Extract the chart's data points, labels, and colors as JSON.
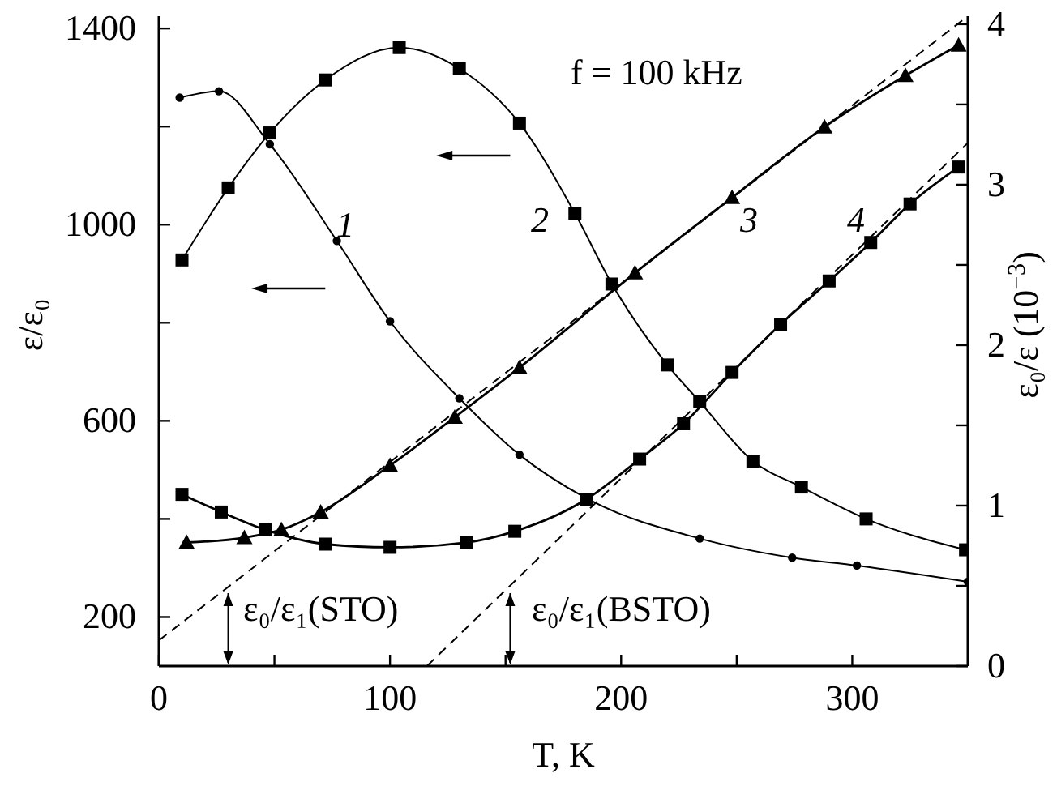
{
  "chart_data": {
    "type": "line",
    "xlabel": "T, K",
    "ylabel": "ε/ε₀",
    "y2label": "ε₀/ε (10$^{−3}$)",
    "xlim": [
      0,
      350
    ],
    "xticks": [
      0,
      {
        "value": 50,
        "label": null
      },
      100,
      {
        "value": 150,
        "label": null
      },
      200,
      {
        "value": 250,
        "label": null
      },
      300
    ],
    "ylim": [
      100,
      1425
    ],
    "yticks": [
      200,
      {
        "value": 400,
        "label": null
      },
      600,
      {
        "value": 800,
        "label": null
      },
      1000,
      {
        "value": 1200,
        "label": null
      },
      1400
    ],
    "y2lim": [
      0,
      4.05
    ],
    "y2ticks": [
      0,
      {
        "value": 0.5,
        "label": null
      },
      1,
      {
        "value": 1.5,
        "label": null
      },
      2,
      {
        "value": 2.5,
        "label": null
      },
      3,
      {
        "value": 3.5,
        "label": null
      },
      4
    ],
    "grid": false,
    "line_style": "solid",
    "series": [
      {
        "color": "#000000",
        "marker": "circle",
        "x": [
          9,
          26,
          48,
          77,
          100,
          130,
          156,
          185,
          234,
          274,
          302,
          350
        ],
        "values": [
          1259,
          1272,
          1164,
          967,
          803,
          646,
          531,
          442,
          360,
          321,
          305,
          272
        ]
      },
      {
        "color": "#000000",
        "marker": "square",
        "x": [
          10,
          30,
          48,
          72,
          104,
          130,
          156,
          180,
          196,
          220,
          234,
          257,
          278,
          306,
          349
        ],
        "values": [
          928,
          1075,
          1187,
          1295,
          1361,
          1318,
          1207,
          1023,
          879,
          714,
          639,
          518,
          465,
          400,
          337
        ]
      },
      {
        "color": "#000000",
        "marker": "triangle",
        "axis": "y2",
        "x": [
          12,
          37,
          53,
          70,
          100,
          128,
          156,
          206,
          248,
          288,
          323,
          346
        ],
        "values": [
          0.77,
          0.8,
          0.85,
          0.96,
          1.25,
          1.55,
          1.86,
          2.45,
          2.92,
          3.36,
          3.68,
          3.87
        ]
      },
      {
        "color": "#000000",
        "marker": "square",
        "axis": "y2",
        "x": [
          10,
          27,
          46,
          72,
          100,
          133,
          154,
          185,
          208,
          227,
          248,
          269,
          290,
          308,
          325,
          346
        ],
        "values": [
          1.07,
          0.96,
          0.85,
          0.76,
          0.74,
          0.77,
          0.84,
          1.04,
          1.29,
          1.51,
          1.83,
          2.13,
          2.4,
          2.64,
          2.88,
          3.11
        ]
      },
      {
        "color": "#000000",
        "marker": "none",
        "line_style": "dashed",
        "axis": "y2",
        "x": [
          0,
          350
        ],
        "values": [
          0.16,
          4.05
        ]
      },
      {
        "color": "#000000",
        "marker": "none",
        "line_style": "dashed",
        "axis": "y2",
        "x": [
          116,
          350
        ],
        "values": [
          0,
          3.26
        ]
      }
    ],
    "annotations": [
      "1",
      "2",
      "3",
      "4",
      "f = 100 kHz",
      "ε₀/ε₁(STO)",
      "ε₀/ε₁(BSTO)"
    ]
  }
}
